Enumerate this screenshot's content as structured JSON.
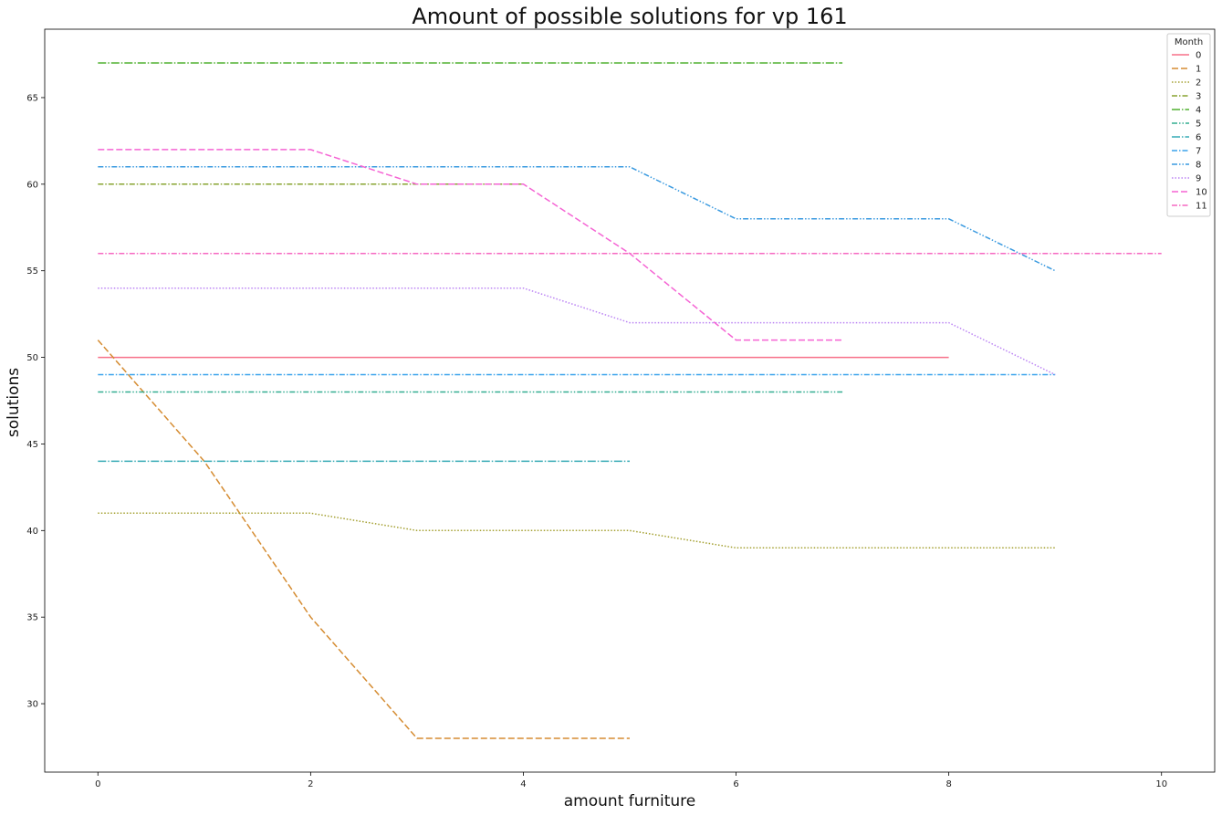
{
  "chart_data": {
    "type": "line",
    "title": "Amount of possible solutions for vp 161",
    "xlabel": "amount furniture",
    "ylabel": "solutions",
    "xlim": [
      -0.5,
      10.5
    ],
    "ylim": [
      26.05,
      68.95
    ],
    "xticks": [
      0,
      2,
      4,
      6,
      8,
      10
    ],
    "yticks": [
      30,
      35,
      40,
      45,
      50,
      55,
      60,
      65
    ],
    "grid": false,
    "legend": {
      "title": "Month",
      "placement": "top-right"
    },
    "series": [
      {
        "name": "0",
        "color": "#f77189",
        "dash": "solid",
        "x": [
          0,
          1,
          2,
          3,
          4,
          5,
          6,
          7,
          8
        ],
        "y": [
          50,
          50,
          50,
          50,
          50,
          50,
          50,
          50,
          50
        ]
      },
      {
        "name": "1",
        "color": "#d58c32",
        "dash": "dashed",
        "x": [
          0,
          1,
          2,
          3,
          4,
          5
        ],
        "y": [
          51,
          44,
          35,
          28,
          28,
          28
        ]
      },
      {
        "name": "2",
        "color": "#a4a031",
        "dash": "dotted",
        "x": [
          0,
          1,
          2,
          3,
          4,
          5,
          6,
          7,
          8,
          9
        ],
        "y": [
          41,
          41,
          41,
          40,
          40,
          40,
          39,
          39,
          39,
          39
        ]
      },
      {
        "name": "3",
        "color": "#88a431",
        "dash": "dashdot",
        "x": [
          0,
          1,
          2,
          3,
          4
        ],
        "y": [
          60,
          60,
          60,
          60,
          60
        ]
      },
      {
        "name": "4",
        "color": "#50b131",
        "dash": "longdashdot",
        "x": [
          0,
          1,
          2,
          3,
          4,
          5,
          6,
          7
        ],
        "y": [
          67,
          67,
          67,
          67,
          67,
          67,
          67,
          67
        ]
      },
      {
        "name": "5",
        "color": "#34ae91",
        "dash": "dashdotdot",
        "x": [
          0,
          1,
          2,
          3,
          4,
          5,
          6,
          7
        ],
        "y": [
          48,
          48,
          48,
          48,
          48,
          48,
          48,
          48
        ]
      },
      {
        "name": "6",
        "color": "#37abb5",
        "dash": "longdashdot",
        "x": [
          0,
          1,
          2,
          3,
          4,
          5
        ],
        "y": [
          44,
          44,
          44,
          44,
          44,
          44
        ]
      },
      {
        "name": "7",
        "color": "#3ba3ec",
        "dash": "dashdot",
        "x": [
          0,
          1,
          2,
          3,
          4,
          5,
          6,
          7,
          8,
          9
        ],
        "y": [
          49,
          49,
          49,
          49,
          49,
          49,
          49,
          49,
          49,
          49
        ]
      },
      {
        "name": "8",
        "color": "#3a9ae0",
        "dash": "dashdotdot",
        "x": [
          0,
          1,
          2,
          3,
          4,
          5,
          6,
          7,
          8,
          9
        ],
        "y": [
          61,
          61,
          61,
          61,
          61,
          61,
          58,
          58,
          58,
          55
        ]
      },
      {
        "name": "9",
        "color": "#bb83f4",
        "dash": "dotted",
        "x": [
          0,
          1,
          2,
          3,
          4,
          5,
          6,
          7,
          8,
          9
        ],
        "y": [
          54,
          54,
          54,
          54,
          54,
          52,
          52,
          52,
          52,
          49
        ]
      },
      {
        "name": "10",
        "color": "#f564d4",
        "dash": "dashed",
        "x": [
          0,
          1,
          2,
          3,
          4,
          5,
          6,
          7
        ],
        "y": [
          62,
          62,
          62,
          60,
          60,
          56,
          51,
          51
        ]
      },
      {
        "name": "11",
        "color": "#f668c2",
        "dash": "dashdot",
        "x": [
          0,
          1,
          2,
          3,
          4,
          5,
          6,
          7,
          8,
          9,
          10
        ],
        "y": [
          56,
          56,
          56,
          56,
          56,
          56,
          56,
          56,
          56,
          56,
          56
        ]
      }
    ]
  }
}
